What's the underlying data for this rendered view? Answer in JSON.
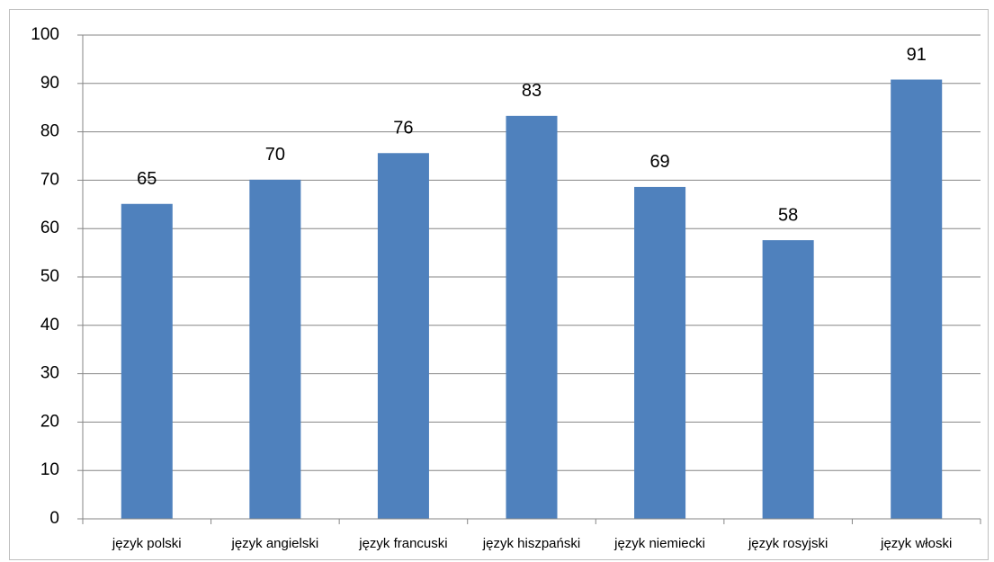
{
  "chart_data": {
    "type": "bar",
    "categories": [
      "język polski",
      "język angielski",
      "język francuski",
      "język hiszpański",
      "język niemiecki",
      "język rosyjski",
      "język włoski"
    ],
    "values": [
      65.1,
      70.1,
      75.6,
      83.3,
      68.6,
      57.6,
      90.8
    ],
    "value_labels": [
      "65",
      "70",
      "76",
      "83",
      "69",
      "58",
      "91"
    ],
    "color": "#4f81bd",
    "ylim": [
      0,
      100
    ],
    "yticks": [
      0,
      10,
      20,
      30,
      40,
      50,
      60,
      70,
      80,
      90,
      100
    ],
    "grid": true
  }
}
